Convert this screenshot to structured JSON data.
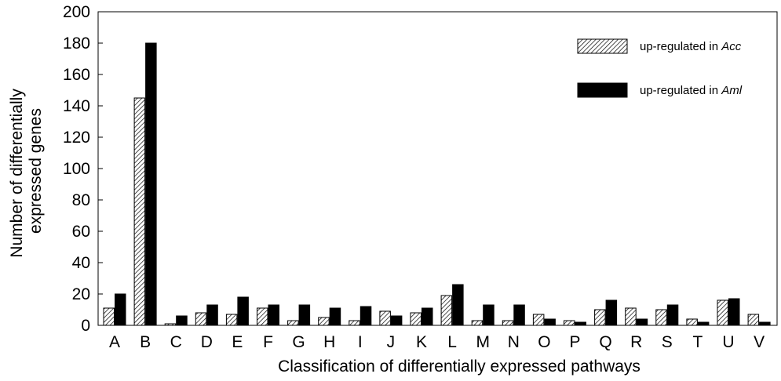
{
  "chart_data": {
    "type": "bar",
    "title": "",
    "xlabel": "Classification of differentially expressed pathways",
    "ylabel_lines": [
      "Number of differentially",
      "expressed genes"
    ],
    "ylim": [
      0,
      200
    ],
    "yticks": [
      "0",
      "20",
      "40",
      "60",
      "80",
      "100",
      "120",
      "140",
      "160",
      "180",
      "200"
    ],
    "categories": [
      "A",
      "B",
      "C",
      "D",
      "E",
      "F",
      "G",
      "H",
      "I",
      "J",
      "K",
      "L",
      "M",
      "N",
      "O",
      "P",
      "Q",
      "R",
      "S",
      "T",
      "U",
      "V"
    ],
    "series": [
      {
        "name_prefix": "up-regulated in ",
        "name_italic": "Acc",
        "pattern": "hatched",
        "values": [
          11,
          145,
          1,
          8,
          7,
          11,
          3,
          5,
          3,
          9,
          8,
          19,
          3,
          3,
          7,
          3,
          10,
          11,
          10,
          4,
          16,
          7
        ]
      },
      {
        "name_prefix": "up-regulated in ",
        "name_italic": "Aml",
        "pattern": "solid",
        "values": [
          20,
          180,
          6,
          13,
          18,
          13,
          13,
          11,
          12,
          6,
          11,
          26,
          13,
          13,
          4,
          2,
          16,
          4,
          13,
          2,
          17,
          2
        ]
      }
    ],
    "grid": false,
    "legend_placement": "top-right",
    "colors": {
      "solid": "#000000",
      "hatch": "#000000",
      "background": "#ffffff"
    }
  }
}
